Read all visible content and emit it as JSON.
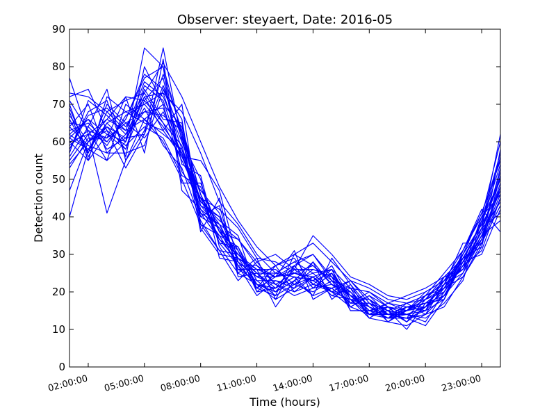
{
  "chart_data": {
    "type": "line",
    "title": "Observer: steyaert, Date: 2016-05",
    "xlabel": "Time (hours)",
    "ylabel": "Detection count",
    "x_ticks": [
      "02:00:00",
      "05:00:00",
      "08:00:00",
      "11:00:00",
      "14:00:00",
      "17:00:00",
      "20:00:00",
      "23:00:00"
    ],
    "y_ticks": [
      "0",
      "10",
      "20",
      "30",
      "40",
      "50",
      "60",
      "70",
      "80",
      "90"
    ],
    "x_hours": [
      1,
      2,
      3,
      4,
      5,
      6,
      7,
      8,
      9,
      10,
      11,
      12,
      13,
      14,
      15,
      16,
      17,
      18,
      19,
      20,
      21,
      22,
      23,
      24
    ],
    "ylim": [
      0,
      90
    ],
    "xlim_hours": [
      1,
      24
    ],
    "grid": false,
    "line_color": "#0000ff",
    "series": [
      {
        "values": [
          77,
          62,
          41,
          55,
          66,
          60,
          50,
          38,
          31,
          30,
          25,
          20,
          23,
          28,
          22,
          19,
          18,
          15,
          12,
          16,
          22,
          30,
          38,
          56
        ]
      },
      {
        "values": [
          40,
          58,
          65,
          60,
          85,
          80,
          47,
          42,
          35,
          27,
          22,
          18,
          21,
          24,
          20,
          16,
          14,
          17,
          15,
          18,
          20,
          29,
          33,
          45
        ]
      },
      {
        "values": [
          60,
          55,
          72,
          68,
          70,
          73,
          68,
          57,
          44,
          38,
          30,
          25,
          28,
          30,
          24,
          20,
          15,
          13,
          14,
          12,
          20,
          27,
          35,
          39
        ]
      },
      {
        "values": [
          64,
          70,
          57,
          62,
          72,
          63,
          56,
          55,
          47,
          28,
          24,
          27,
          29,
          22,
          20,
          18,
          13,
          12,
          16,
          16,
          23,
          28,
          30,
          42
        ]
      },
      {
        "values": [
          55,
          62,
          60,
          66,
          78,
          74,
          66,
          37,
          30,
          29,
          26,
          16,
          23,
          25,
          26,
          17,
          17,
          15,
          10,
          17,
          18,
          31,
          42,
          36
        ]
      },
      {
        "values": [
          72,
          74,
          63,
          53,
          62,
          85,
          60,
          50,
          29,
          28,
          21,
          24,
          31,
          18,
          21,
          23,
          18,
          14,
          13,
          19,
          22,
          33,
          33,
          48
        ]
      },
      {
        "values": [
          58,
          68,
          71,
          56,
          80,
          70,
          52,
          45,
          38,
          34,
          27,
          22,
          19,
          21,
          25,
          18,
          16,
          13,
          17,
          14,
          16,
          24,
          32,
          51
        ]
      },
      {
        "values": [
          62,
          58,
          55,
          70,
          66,
          62,
          58,
          44,
          40,
          31,
          20,
          25,
          24,
          19,
          29,
          22,
          14,
          13,
          15,
          20,
          23,
          26,
          40,
          60
        ]
      },
      {
        "values": [
          47,
          60,
          66,
          72,
          57,
          82,
          49,
          49,
          36,
          29,
          25,
          21,
          27,
          30,
          23,
          19,
          16,
          14,
          13,
          11,
          18,
          28,
          36,
          44
        ]
      },
      {
        "values": [
          68,
          55,
          62,
          58,
          74,
          66,
          65,
          40,
          43,
          25,
          22,
          20,
          26,
          22,
          21,
          17,
          20,
          16,
          14,
          15,
          21,
          30,
          38,
          47
        ]
      },
      {
        "values": [
          73,
          72,
          68,
          63,
          76,
          72,
          60,
          46,
          33,
          27,
          19,
          23,
          22,
          26,
          24,
          15,
          15,
          14,
          16,
          17,
          19,
          25,
          34,
          53
        ]
      },
      {
        "values": [
          61,
          66,
          58,
          61,
          69,
          59,
          53,
          39,
          31,
          23,
          28,
          22,
          20,
          24,
          19,
          21,
          13,
          16,
          12,
          18,
          24,
          29,
          37,
          41
        ]
      },
      {
        "values": [
          56,
          64,
          74,
          55,
          63,
          78,
          63,
          43,
          37,
          30,
          24,
          24,
          25,
          23,
          27,
          18,
          18,
          12,
          15,
          16,
          20,
          27,
          31,
          45
        ]
      },
      {
        "values": [
          66,
          57,
          70,
          65,
          61,
          68,
          57,
          41,
          34,
          28,
          21,
          19,
          30,
          27,
          22,
          20,
          14,
          15,
          14,
          13,
          17,
          23,
          39,
          50
        ]
      },
      {
        "values": [
          59,
          63,
          55,
          60,
          75,
          71,
          56,
          47,
          41,
          26,
          26,
          26,
          22,
          20,
          23,
          16,
          19,
          16,
          15,
          19,
          21,
          29,
          32,
          58
        ]
      },
      {
        "values": [
          70,
          56,
          65,
          68,
          65,
          63,
          70,
          38,
          35,
          32,
          23,
          23,
          21,
          28,
          18,
          22,
          16,
          13,
          13,
          15,
          24,
          26,
          35,
          47
        ]
      },
      {
        "values": [
          53,
          61,
          61,
          72,
          71,
          77,
          54,
          51,
          32,
          25,
          29,
          18,
          27,
          21,
          25,
          15,
          15,
          17,
          16,
          17,
          18,
          30,
          41,
          55
        ]
      },
      {
        "values": [
          64,
          59,
          57,
          57,
          59,
          74,
          62,
          44,
          39,
          35,
          20,
          21,
          24,
          23,
          20,
          23,
          17,
          12,
          11,
          14,
          22,
          25,
          37,
          62
        ]
      },
      {
        "values": [
          58,
          67,
          69,
          64,
          73,
          65,
          59,
          42,
          38,
          27,
          27,
          24,
          26,
          26,
          24,
          19,
          14,
          14,
          14,
          16,
          19,
          28,
          34,
          49
        ]
      },
      {
        "values": [
          67,
          60,
          63,
          59,
          64,
          61,
          51,
          48,
          36,
          31,
          22,
          20,
          23,
          19,
          21,
          17,
          17,
          15,
          17,
          18,
          23,
          31,
          40,
          46
        ]
      },
      {
        "values": [
          63,
          65,
          60,
          66,
          77,
          80,
          62,
          36,
          45,
          24,
          25,
          25,
          28,
          25,
          20,
          20,
          15,
          16,
          12,
          16,
          20,
          27,
          36,
          52
        ]
      },
      {
        "values": [
          57,
          71,
          67,
          62,
          68,
          69,
          56,
          45,
          33,
          32,
          21,
          27,
          20,
          22,
          26,
          16,
          19,
          14,
          15,
          17,
          21,
          24,
          33,
          43
        ]
      },
      {
        "values": [
          61,
          58,
          64,
          61,
          62,
          75,
          61,
          43,
          40,
          28,
          24,
          22,
          25,
          27,
          23,
          21,
          16,
          13,
          16,
          15,
          18,
          29,
          38,
          54
        ]
      },
      {
        "values": [
          65,
          64,
          59,
          67,
          70,
          64,
          57,
          40,
          37,
          26,
          23,
          19,
          22,
          24,
          19,
          18,
          14,
          15,
          14,
          16,
          22,
          26,
          35,
          48
        ]
      },
      {
        "values": [
          60,
          62,
          66,
          63,
          66,
          70,
          64,
          46,
          34,
          30,
          26,
          24,
          27,
          21,
          22,
          17,
          17,
          14,
          13,
          14,
          19,
          28,
          39,
          57
        ]
      },
      {
        "values": [
          62,
          66,
          62,
          60,
          72,
          73,
          58,
          41,
          38,
          29,
          22,
          21,
          24,
          23,
          25,
          19,
          15,
          16,
          15,
          18,
          21,
          27,
          36,
          51
        ]
      },
      {
        "values": [
          71,
          63,
          61,
          65,
          68,
          67,
          63,
          46,
          36,
          34,
          28,
          30,
          26,
          35,
          30,
          24,
          22,
          19,
          18,
          20,
          23,
          29,
          37,
          50
        ]
      },
      {
        "values": [
          69,
          57,
          68,
          71,
          73,
          81,
          72,
          60,
          48,
          39,
          32,
          27,
          30,
          33,
          28,
          23,
          21,
          18,
          17,
          19,
          25,
          31,
          41,
          55
        ]
      },
      {
        "values": [
          54,
          60,
          64,
          58,
          71,
          65,
          55,
          45,
          42,
          37,
          29,
          28,
          25,
          24,
          26,
          21,
          20,
          17,
          19,
          21,
          24,
          26,
          34,
          46
        ]
      }
    ]
  }
}
